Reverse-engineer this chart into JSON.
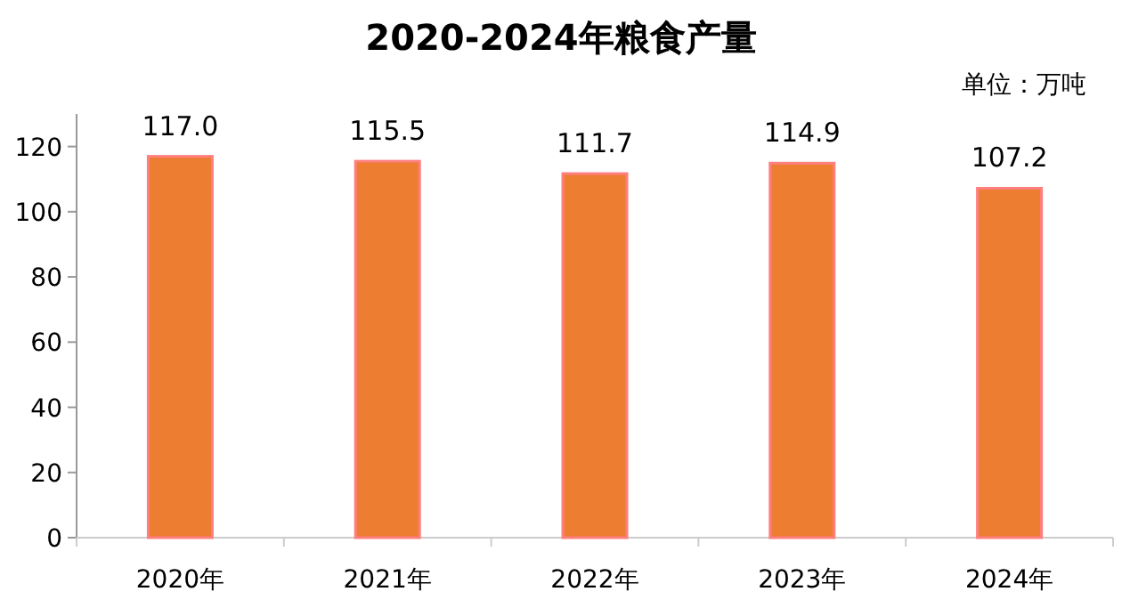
{
  "chart_data": {
    "type": "bar",
    "title": "2020-2024年粮食产量",
    "ylabel": "单位：万吨",
    "categories": [
      "2020年",
      "2021年",
      "2022年",
      "2023年",
      "2024年"
    ],
    "values": [
      117.0,
      115.5,
      111.7,
      114.9,
      107.2
    ],
    "value_labels": [
      "117.0",
      "115.5",
      "111.7",
      "114.9",
      "107.2"
    ],
    "color": "#ed7d31",
    "ylim": [
      0,
      130
    ],
    "yticks": [
      0,
      20,
      40,
      60,
      80,
      100,
      120
    ],
    "grid": false
  }
}
